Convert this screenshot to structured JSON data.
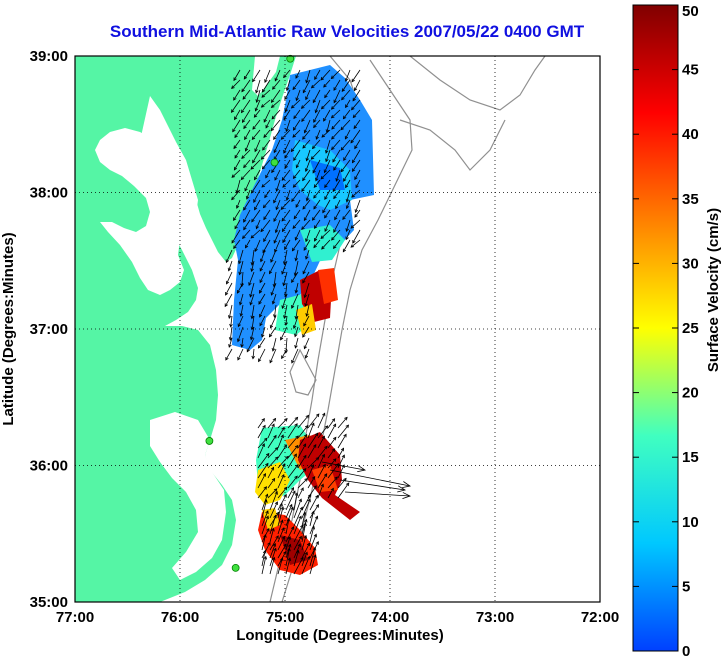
{
  "title": "Southern Mid-Atlantic Raw Velocities 2007/05/22 0400 GMT",
  "x_axis": {
    "label": "Longitude (Degrees:Minutes)",
    "ticks": [
      "77:00",
      "76:00",
      "75:00",
      "74:00",
      "73:00",
      "72:00"
    ]
  },
  "y_axis": {
    "label": "Latitude (Degrees:Minutes)",
    "ticks": [
      "39:00",
      "38:00",
      "37:00",
      "36:00",
      "35:00"
    ]
  },
  "colorbar": {
    "label": "Surface Velocity (cm/s)",
    "ticks": [
      "0",
      "5",
      "10",
      "15",
      "20",
      "25",
      "30",
      "35",
      "40",
      "45",
      "50"
    ],
    "min": 0,
    "max": 50,
    "colors": [
      "#0040ff",
      "#00c8ff",
      "#40ffc0",
      "#ffff00",
      "#ff8000",
      "#ff0000",
      "#800000"
    ]
  },
  "map": {
    "lon_range": [
      -77,
      -72
    ],
    "lat_range": [
      35,
      39
    ],
    "land_color": "#55f5a5",
    "water_color": "#ffffff",
    "bathymetry_color": "#909090",
    "stations": [
      {
        "lon": -74.95,
        "lat": 38.98
      },
      {
        "lon": -75.1,
        "lat": 38.22
      },
      {
        "lon": -75.72,
        "lat": 36.18
      },
      {
        "lon": -75.47,
        "lat": 35.25
      }
    ]
  }
}
